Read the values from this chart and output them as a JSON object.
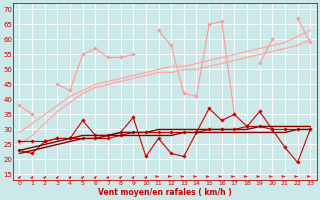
{
  "background_color": "#cce8e8",
  "grid_color": "#ffffff",
  "xlabel": "Vent moyen/en rafales ( km/h )",
  "ylabel_ticks": [
    15,
    20,
    25,
    30,
    35,
    40,
    45,
    50,
    55,
    60,
    65,
    70
  ],
  "x_ticks": [
    0,
    1,
    2,
    3,
    4,
    5,
    6,
    7,
    8,
    9,
    10,
    11,
    12,
    13,
    14,
    15,
    16,
    17,
    18,
    19,
    20,
    21,
    22,
    23
  ],
  "xlim": [
    -0.5,
    23.5
  ],
  "ylim": [
    13,
    72
  ],
  "series": [
    {
      "color": "#ff9999",
      "linewidth": 0.8,
      "marker": "D",
      "markersize": 1.8,
      "values": [
        38,
        35,
        null,
        45,
        43,
        55,
        57,
        54,
        54,
        55,
        null,
        63,
        58,
        42,
        41,
        65,
        66,
        35,
        null,
        52,
        60,
        null,
        67,
        59
      ]
    },
    {
      "color": "#ffaaaa",
      "linewidth": 1.0,
      "marker": null,
      "markersize": 0,
      "values": [
        25,
        28,
        32,
        36,
        39,
        42,
        44,
        45,
        46,
        47,
        48,
        49,
        49,
        50,
        50,
        51,
        52,
        53,
        54,
        55,
        56,
        57,
        58,
        60
      ]
    },
    {
      "color": "#ffaaaa",
      "linewidth": 1.0,
      "marker": null,
      "markersize": 0,
      "values": [
        29,
        32,
        35,
        38,
        41,
        43,
        45,
        46,
        47,
        48,
        49,
        50,
        51,
        51,
        52,
        53,
        54,
        55,
        56,
        57,
        58,
        59,
        61,
        63
      ]
    },
    {
      "color": "#cc0000",
      "linewidth": 0.8,
      "marker": "D",
      "markersize": 1.8,
      "values": [
        23,
        22,
        26,
        27,
        27,
        33,
        28,
        28,
        29,
        34,
        21,
        27,
        22,
        21,
        29,
        37,
        33,
        35,
        31,
        36,
        30,
        24,
        19,
        30
      ]
    },
    {
      "color": "#cc0000",
      "linewidth": 0.8,
      "marker": "D",
      "markersize": 1.8,
      "values": [
        26,
        26,
        26,
        27,
        27,
        27,
        27,
        27,
        28,
        29,
        29,
        29,
        29,
        29,
        29,
        30,
        30,
        30,
        31,
        31,
        30,
        30,
        30,
        30
      ]
    },
    {
      "color": "#880000",
      "linewidth": 1.0,
      "marker": null,
      "markersize": 0,
      "values": [
        22,
        23,
        24,
        25,
        26,
        27,
        27,
        28,
        28,
        28,
        28,
        28,
        28,
        29,
        29,
        29,
        29,
        29,
        29,
        29,
        29,
        29,
        30,
        30
      ]
    },
    {
      "color": "#880000",
      "linewidth": 1.0,
      "marker": null,
      "markersize": 0,
      "values": [
        23,
        24,
        25,
        26,
        27,
        28,
        28,
        28,
        29,
        29,
        29,
        30,
        30,
        30,
        30,
        30,
        30,
        30,
        30,
        31,
        31,
        31,
        31,
        31
      ]
    }
  ],
  "wind_arrows_diagonal": [
    0,
    1,
    2,
    3,
    4,
    5,
    6,
    7,
    8,
    9,
    10
  ],
  "wind_arrows_horizontal": [
    11,
    12,
    13,
    14,
    15,
    16,
    17,
    18,
    19,
    20,
    21,
    22,
    23
  ]
}
